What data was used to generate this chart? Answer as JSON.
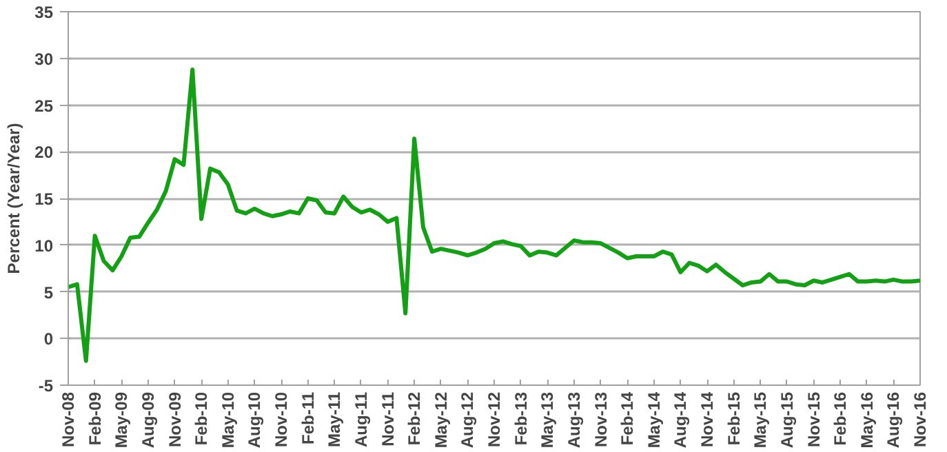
{
  "chart_data": {
    "type": "line",
    "ylabel": "Percent (Year/Year)",
    "categories": [
      "Nov-08",
      null,
      null,
      "Feb-09",
      null,
      null,
      "May-09",
      null,
      null,
      "Aug-09",
      null,
      null,
      "Nov-09",
      null,
      null,
      "Feb-10",
      null,
      null,
      "May-10",
      null,
      null,
      "Aug-10",
      null,
      null,
      "Nov-10",
      null,
      null,
      "Feb-11",
      null,
      null,
      "May-11",
      null,
      null,
      "Aug-11",
      null,
      null,
      "Nov-11",
      null,
      null,
      "Feb-12",
      null,
      null,
      "May-12",
      null,
      null,
      "Aug-12",
      null,
      null,
      "Nov-12",
      null,
      null,
      "Feb-13",
      null,
      null,
      "May-13",
      null,
      null,
      "Aug-13",
      null,
      null,
      "Nov-13",
      null,
      null,
      "Feb-14",
      null,
      null,
      "May-14",
      null,
      null,
      "Aug-14",
      null,
      null,
      "Nov-14",
      null,
      null,
      "Feb-15",
      null,
      null,
      "May-15",
      null,
      null,
      "Aug-15",
      null,
      null,
      "Nov-15",
      null,
      null,
      "Feb-16",
      null,
      null,
      "May-16",
      null,
      null,
      "Aug-16",
      null,
      null,
      "Nov-16"
    ],
    "series": [
      {
        "color": "#14a014",
        "values": [
          5.5,
          5.8,
          -2.4,
          11.0,
          8.3,
          7.3,
          8.8,
          10.8,
          10.9,
          12.4,
          13.8,
          15.8,
          19.2,
          18.6,
          28.8,
          12.8,
          18.2,
          17.8,
          16.5,
          13.7,
          13.4,
          13.9,
          13.4,
          13.1,
          13.3,
          13.6,
          13.4,
          15.0,
          14.8,
          13.5,
          13.4,
          15.2,
          14.1,
          13.5,
          13.8,
          13.3,
          12.5,
          12.9,
          2.7,
          21.4,
          11.9,
          9.3,
          9.6,
          9.4,
          9.2,
          8.9,
          9.2,
          9.6,
          10.2,
          10.4,
          10.1,
          9.9,
          8.9,
          9.3,
          9.2,
          8.9,
          9.7,
          10.5,
          10.3,
          10.3,
          10.2,
          9.7,
          9.2,
          8.6,
          8.8,
          8.8,
          8.8,
          9.3,
          9.0,
          7.1,
          8.1,
          7.8,
          7.2,
          7.9,
          7.1,
          6.4,
          5.7,
          6.0,
          6.1,
          6.9,
          6.1,
          6.1,
          5.8,
          5.7,
          6.2,
          6.0,
          6.3,
          6.6,
          6.9,
          6.1,
          6.1,
          6.2,
          6.1,
          6.3,
          6.1,
          6.1,
          6.2
        ]
      }
    ],
    "ylim": [
      -5,
      35
    ],
    "yticks": [
      -5,
      0,
      5,
      10,
      15,
      20,
      25,
      30,
      35
    ],
    "grid": "y"
  }
}
